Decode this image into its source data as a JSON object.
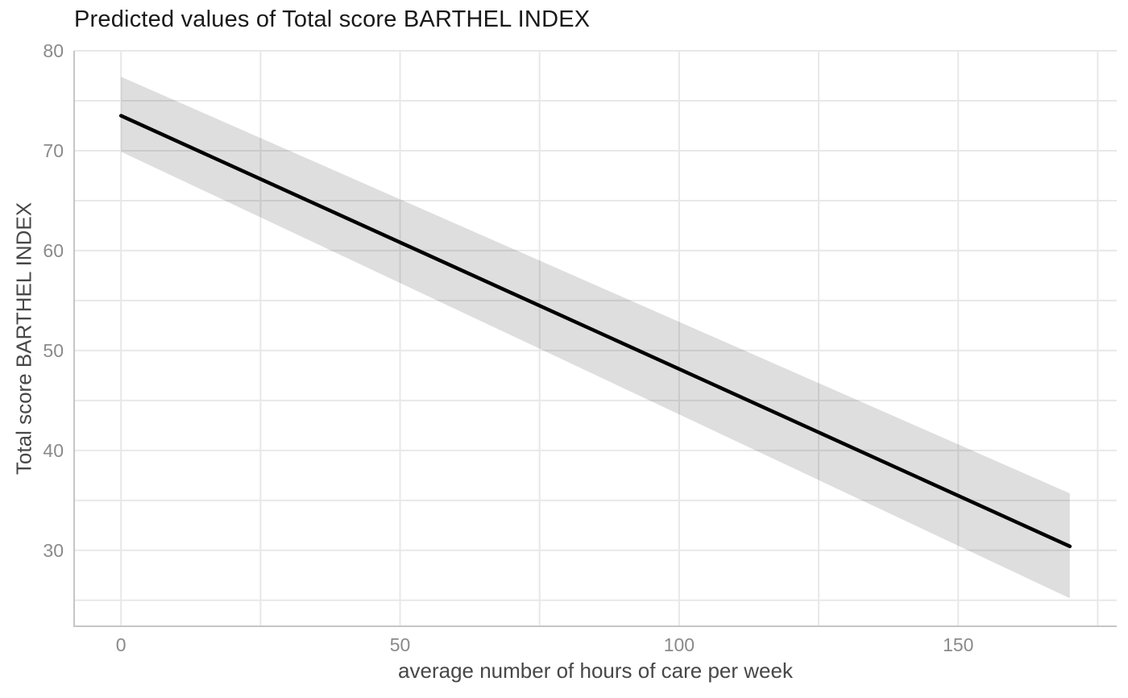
{
  "chart_data": {
    "type": "line",
    "title": "Predicted values of Total score BARTHEL INDEX",
    "xlabel": "average number of hours of care per week",
    "ylabel": "Total score BARTHEL INDEX",
    "legend": "none",
    "grid": true,
    "xlim": [
      -8.4,
      178.4
    ],
    "ylim": [
      22.4,
      80
    ],
    "x_ticks": [
      0,
      50,
      100,
      150
    ],
    "x_minor_ticks": [
      25,
      75,
      125,
      175
    ],
    "y_ticks": [
      30,
      40,
      50,
      60,
      70,
      80
    ],
    "y_minor_ticks": [
      25,
      35,
      45,
      55,
      65,
      75
    ],
    "series": [
      {
        "name": "predicted",
        "x": [
          0,
          170
        ],
        "y": [
          73.5,
          30.4
        ],
        "ci_upper": [
          77.4,
          35.7
        ],
        "ci_lower": [
          69.9,
          25.2
        ]
      }
    ],
    "style": {
      "background_color": "#ffffff",
      "title_color": "#1a1a1a",
      "axis_label_color": "#474747",
      "tick_color": "#8a8a8a",
      "grid_color": "#e8e8e8",
      "axis_line_color": "#c6c6c6",
      "line_color": "#000000",
      "ribbon_color": "#000000",
      "ribbon_opacity": 0.13
    }
  }
}
